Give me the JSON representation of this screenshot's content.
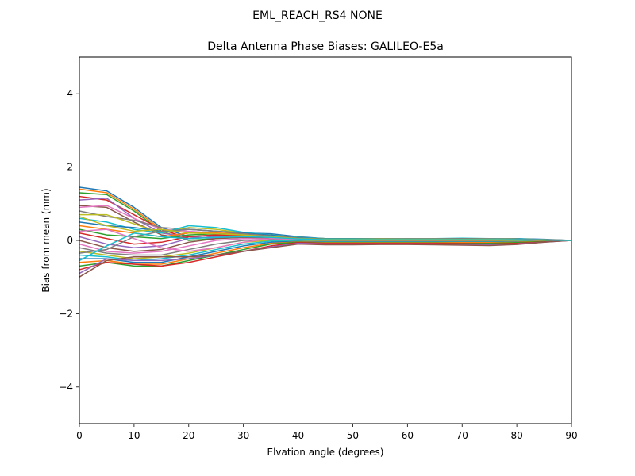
{
  "chart_data": {
    "type": "line",
    "suptitle": "EML_REACH_RS4   NONE",
    "title": "Delta Antenna Phase Biases: GALILEO-E5a",
    "xlabel": "Elvation angle (degrees)",
    "ylabel": "Bias from mean (mm)",
    "xlim": [
      0,
      90
    ],
    "ylim": [
      -5,
      5
    ],
    "xticks": [
      0,
      10,
      20,
      30,
      40,
      50,
      60,
      70,
      80,
      90
    ],
    "yticks": [
      -4,
      -2,
      0,
      2,
      4
    ],
    "ytick_labels": [
      "−4",
      "−2",
      "0",
      "2",
      "4"
    ],
    "grid": false,
    "legend": "none",
    "colors": [
      "#1f77b4",
      "#ff7f0e",
      "#2ca02c",
      "#d62728",
      "#9467bd",
      "#8c564b",
      "#e377c2",
      "#7f7f7f",
      "#bcbd22",
      "#17becf"
    ],
    "x": [
      0,
      5,
      10,
      15,
      20,
      25,
      30,
      35,
      40,
      45,
      50,
      55,
      60,
      65,
      70,
      75,
      80,
      85,
      90
    ],
    "series": [
      {
        "values": [
          1.45,
          1.35,
          0.9,
          0.35,
          0.1,
          0.15,
          0.2,
          0.18,
          0.1,
          0.05,
          0.05,
          0.05,
          0.05,
          0.05,
          0.05,
          0.05,
          0.05,
          0.03,
          0.0
        ]
      },
      {
        "values": [
          1.4,
          1.3,
          0.85,
          0.3,
          0.05,
          0.1,
          0.2,
          0.15,
          0.08,
          0.05,
          0.05,
          0.05,
          0.05,
          0.05,
          0.05,
          0.05,
          0.04,
          0.02,
          0.0
        ]
      },
      {
        "values": [
          1.3,
          1.25,
          0.8,
          0.25,
          0.0,
          0.05,
          0.15,
          0.12,
          0.06,
          0.03,
          0.03,
          0.03,
          0.03,
          0.03,
          0.03,
          0.03,
          0.02,
          0.01,
          0.0
        ]
      },
      {
        "values": [
          1.2,
          1.1,
          0.7,
          0.3,
          0.05,
          0.1,
          0.15,
          0.1,
          0.05,
          0.02,
          0.02,
          0.02,
          0.02,
          0.02,
          0.02,
          0.02,
          0.02,
          0.01,
          0.0
        ]
      },
      {
        "values": [
          1.1,
          1.15,
          0.6,
          0.2,
          0.1,
          0.05,
          0.1,
          0.1,
          0.05,
          0.02,
          0.02,
          0.02,
          0.02,
          0.02,
          0.02,
          0.02,
          0.02,
          0.01,
          0.0
        ]
      },
      {
        "values": [
          0.95,
          0.9,
          0.5,
          0.15,
          0.05,
          0.1,
          0.12,
          0.1,
          0.04,
          0.02,
          0.02,
          0.02,
          0.02,
          0.02,
          0.03,
          0.02,
          0.02,
          0.01,
          0.0
        ]
      },
      {
        "values": [
          0.9,
          0.95,
          0.6,
          0.3,
          0.25,
          0.2,
          0.15,
          0.1,
          0.05,
          0.03,
          0.03,
          0.03,
          0.03,
          0.03,
          0.03,
          0.03,
          0.02,
          0.01,
          0.0
        ]
      },
      {
        "values": [
          0.8,
          0.65,
          0.55,
          0.35,
          0.3,
          0.25,
          0.2,
          0.12,
          0.06,
          0.03,
          0.03,
          0.03,
          0.03,
          0.04,
          0.04,
          0.03,
          0.03,
          0.01,
          0.0
        ]
      },
      {
        "values": [
          0.7,
          0.7,
          0.45,
          0.2,
          0.35,
          0.3,
          0.2,
          0.15,
          0.08,
          0.04,
          0.04,
          0.04,
          0.04,
          0.05,
          0.05,
          0.05,
          0.04,
          0.02,
          0.0
        ]
      },
      {
        "values": [
          0.6,
          0.5,
          0.3,
          0.2,
          0.4,
          0.35,
          0.22,
          0.15,
          0.08,
          0.05,
          0.05,
          0.05,
          0.05,
          0.05,
          0.06,
          0.05,
          0.04,
          0.02,
          0.0
        ]
      },
      {
        "values": [
          0.5,
          0.4,
          0.35,
          0.25,
          0.3,
          0.25,
          0.2,
          0.14,
          0.07,
          0.04,
          0.04,
          0.04,
          0.04,
          0.04,
          0.05,
          0.04,
          0.03,
          0.02,
          0.0
        ]
      },
      {
        "values": [
          0.4,
          0.3,
          0.2,
          0.1,
          0.2,
          0.2,
          0.18,
          0.12,
          0.06,
          0.03,
          0.03,
          0.04,
          0.04,
          0.04,
          0.04,
          0.04,
          0.03,
          0.01,
          0.0
        ]
      },
      {
        "values": [
          0.3,
          0.15,
          0.1,
          0.05,
          0.15,
          0.18,
          0.15,
          0.1,
          0.05,
          0.03,
          0.03,
          0.03,
          0.03,
          0.03,
          0.03,
          0.03,
          0.02,
          0.01,
          0.0
        ]
      },
      {
        "values": [
          0.2,
          0.05,
          -0.1,
          -0.05,
          0.1,
          0.15,
          0.12,
          0.08,
          0.04,
          0.02,
          0.02,
          0.02,
          0.02,
          0.02,
          0.02,
          0.02,
          0.02,
          0.01,
          0.0
        ]
      },
      {
        "values": [
          0.1,
          -0.1,
          -0.2,
          -0.15,
          0.05,
          0.1,
          0.1,
          0.07,
          0.03,
          0.01,
          0.01,
          0.01,
          0.01,
          0.01,
          0.01,
          0.01,
          0.01,
          0.0,
          0.0
        ]
      },
      {
        "values": [
          0.0,
          -0.2,
          -0.3,
          -0.25,
          -0.05,
          0.05,
          0.08,
          0.05,
          0.02,
          0.0,
          0.0,
          0.0,
          0.0,
          0.0,
          0.0,
          0.0,
          0.0,
          0.0,
          0.0
        ]
      },
      {
        "values": [
          -0.1,
          -0.3,
          -0.35,
          -0.3,
          -0.15,
          0.0,
          0.05,
          0.04,
          0.01,
          -0.01,
          -0.01,
          -0.01,
          -0.01,
          -0.01,
          -0.01,
          -0.01,
          0.0,
          0.0,
          0.0
        ]
      },
      {
        "values": [
          -0.2,
          -0.35,
          -0.4,
          -0.4,
          -0.25,
          -0.1,
          0.0,
          0.02,
          0.0,
          -0.02,
          -0.02,
          -0.02,
          -0.02,
          -0.02,
          -0.02,
          -0.02,
          -0.01,
          0.0,
          0.0
        ]
      },
      {
        "values": [
          -0.3,
          -0.4,
          -0.5,
          -0.45,
          -0.35,
          -0.2,
          -0.05,
          0.0,
          -0.01,
          -0.03,
          -0.03,
          -0.03,
          -0.03,
          -0.03,
          -0.03,
          -0.03,
          -0.02,
          -0.01,
          0.0
        ]
      },
      {
        "values": [
          -0.4,
          -0.45,
          -0.55,
          -0.5,
          -0.4,
          -0.25,
          -0.1,
          -0.02,
          -0.02,
          -0.04,
          -0.04,
          -0.04,
          -0.04,
          -0.04,
          -0.04,
          -0.04,
          -0.03,
          -0.01,
          0.0
        ]
      },
      {
        "values": [
          -0.5,
          -0.5,
          -0.6,
          -0.6,
          -0.45,
          -0.3,
          -0.15,
          -0.05,
          -0.03,
          -0.05,
          -0.05,
          -0.05,
          -0.05,
          -0.05,
          -0.05,
          -0.05,
          -0.04,
          -0.02,
          0.0
        ]
      },
      {
        "values": [
          -0.6,
          -0.55,
          -0.65,
          -0.65,
          -0.5,
          -0.35,
          -0.2,
          -0.08,
          -0.04,
          -0.06,
          -0.06,
          -0.06,
          -0.06,
          -0.06,
          -0.06,
          -0.06,
          -0.05,
          -0.02,
          0.0
        ]
      },
      {
        "values": [
          -0.7,
          -0.6,
          -0.7,
          -0.7,
          -0.55,
          -0.4,
          -0.25,
          -0.1,
          -0.05,
          -0.07,
          -0.07,
          -0.07,
          -0.07,
          -0.07,
          -0.08,
          -0.08,
          -0.06,
          -0.03,
          0.0
        ]
      },
      {
        "values": [
          -0.8,
          -0.6,
          -0.65,
          -0.7,
          -0.6,
          -0.45,
          -0.3,
          -0.15,
          -0.06,
          -0.08,
          -0.08,
          -0.08,
          -0.08,
          -0.08,
          -0.09,
          -0.1,
          -0.08,
          -0.04,
          0.0
        ]
      },
      {
        "values": [
          -0.9,
          -0.5,
          -0.55,
          -0.55,
          -0.5,
          -0.4,
          -0.3,
          -0.18,
          -0.08,
          -0.1,
          -0.1,
          -0.1,
          -0.1,
          -0.1,
          -0.11,
          -0.12,
          -0.1,
          -0.05,
          0.0
        ]
      },
      {
        "values": [
          -1.0,
          -0.55,
          -0.45,
          -0.45,
          -0.45,
          -0.4,
          -0.3,
          -0.2,
          -0.1,
          -0.12,
          -0.12,
          -0.11,
          -0.11,
          -0.12,
          -0.13,
          -0.14,
          -0.11,
          -0.05,
          0.0
        ]
      },
      {
        "values": [
          0.25,
          0.3,
          0.05,
          -0.2,
          -0.3,
          -0.2,
          -0.05,
          0.05,
          0.04,
          0.02,
          0.02,
          0.02,
          0.02,
          0.02,
          0.02,
          0.02,
          0.02,
          0.01,
          0.0
        ]
      },
      {
        "values": [
          -0.35,
          -0.25,
          0.1,
          0.25,
          0.3,
          0.25,
          0.18,
          0.12,
          0.06,
          0.03,
          0.03,
          0.03,
          0.04,
          0.04,
          0.04,
          0.04,
          0.03,
          0.02,
          0.0
        ]
      },
      {
        "values": [
          0.65,
          0.4,
          0.25,
          0.3,
          0.2,
          0.18,
          0.15,
          0.1,
          0.05,
          0.03,
          0.03,
          0.03,
          0.03,
          0.03,
          0.03,
          0.03,
          0.02,
          0.01,
          0.0
        ]
      },
      {
        "values": [
          -0.55,
          -0.15,
          0.2,
          0.1,
          0.05,
          0.08,
          0.1,
          0.08,
          0.04,
          0.02,
          0.02,
          0.02,
          0.02,
          0.02,
          0.02,
          0.02,
          0.02,
          0.01,
          0.0
        ]
      }
    ]
  }
}
